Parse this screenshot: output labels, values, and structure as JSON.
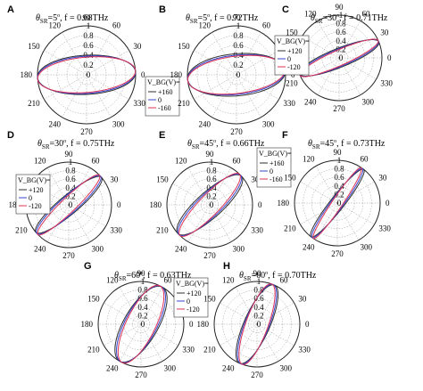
{
  "theme": {
    "colors": {
      "plus": "#2e2e2e",
      "zero": "#3344cc",
      "minus": "#dd3355",
      "grid": "#999999",
      "outer": "#222222"
    }
  },
  "chart_data": [
    {
      "panel": "A",
      "type": "polar",
      "theta_sr": "5",
      "freq": "0.68THz",
      "title_rest": ", f = 0.68THz",
      "angle_labels": [
        "90",
        "60",
        "30",
        "0",
        "330",
        "300",
        "270",
        "240",
        "210",
        "180",
        "150",
        "120"
      ],
      "r_ticks": [
        "0",
        "0.2",
        "0.4",
        "0.6",
        "0.8",
        "1"
      ],
      "rlim": [
        0,
        1
      ],
      "legend": {
        "title": "V_BG(V)=",
        "entries": [
          "+160",
          "0",
          "-160"
        ]
      },
      "series": [
        {
          "name": "+160",
          "ellipse": {
            "major_deg": 3,
            "minor": 0.4
          }
        },
        {
          "name": "0",
          "ellipse": {
            "major_deg": 4,
            "minor": 0.38
          }
        },
        {
          "name": "-160",
          "ellipse": {
            "major_deg": 5,
            "minor": 0.36
          }
        }
      ]
    },
    {
      "panel": "B",
      "type": "polar",
      "theta_sr": "5",
      "freq": "0.72THz",
      "title_rest": ", f = 0.72THz",
      "angle_labels": [
        "90",
        "60",
        "30",
        "0",
        "330",
        "300",
        "270",
        "240",
        "210",
        "180",
        "150",
        "120"
      ],
      "r_ticks": [
        "0",
        "0.2",
        "0.4",
        "0.6",
        "0.8",
        "1"
      ],
      "rlim": [
        0,
        1
      ],
      "legend": null,
      "series": [
        {
          "name": "+160",
          "ellipse": {
            "major_deg": 5,
            "minor": 0.43
          }
        },
        {
          "name": "0",
          "ellipse": {
            "major_deg": 6,
            "minor": 0.4
          }
        },
        {
          "name": "-160",
          "ellipse": {
            "major_deg": 7,
            "minor": 0.38
          }
        }
      ]
    },
    {
      "panel": "C",
      "type": "polar",
      "theta_sr": "30",
      "freq": "0.71THz",
      "title_rest": ", f = 0.71THz",
      "angle_labels": [
        "90",
        "60",
        "30",
        "0",
        "330",
        "300",
        "270",
        "240",
        "210",
        "180",
        "150",
        "120"
      ],
      "r_ticks": [
        "0",
        "0.2",
        "0.4",
        "0.6",
        "0.8",
        "1"
      ],
      "rlim": [
        0,
        1
      ],
      "legend": {
        "title": "V_BG(V)=",
        "entries": [
          "+120",
          "0",
          "-120"
        ]
      },
      "series": [
        {
          "name": "+120",
          "ellipse": {
            "major_deg": 22,
            "minor": 0.22
          }
        },
        {
          "name": "0",
          "ellipse": {
            "major_deg": 23,
            "minor": 0.2
          }
        },
        {
          "name": "-120",
          "ellipse": {
            "major_deg": 24,
            "minor": 0.18
          }
        }
      ]
    },
    {
      "panel": "D",
      "type": "polar",
      "theta_sr": "30",
      "freq": "0.75THz",
      "title_rest": ", f = 0.75THz",
      "angle_labels": [
        "90",
        "60",
        "30",
        "0",
        "330",
        "300",
        "270",
        "240",
        "210",
        "180",
        "150",
        "120"
      ],
      "r_ticks": [
        "0",
        "0.2",
        "0.4",
        "0.6",
        "0.8",
        "1"
      ],
      "rlim": [
        0,
        1
      ],
      "legend": {
        "title": "V_BG(V)=",
        "entries": [
          "+120",
          "0",
          "-120"
        ]
      },
      "series": [
        {
          "name": "+120",
          "ellipse": {
            "major_deg": 40,
            "minor": 0.22
          }
        },
        {
          "name": "0",
          "ellipse": {
            "major_deg": 42,
            "minor": 0.2
          }
        },
        {
          "name": "-120",
          "ellipse": {
            "major_deg": 44,
            "minor": 0.17
          }
        }
      ]
    },
    {
      "panel": "E",
      "type": "polar",
      "theta_sr": "45",
      "freq": "0.66THz",
      "title_rest": ", f = 0.66THz",
      "angle_labels": [
        "90",
        "60",
        "30",
        "0",
        "330",
        "300",
        "270",
        "240",
        "210",
        "180",
        "150",
        "120"
      ],
      "r_ticks": [
        "0",
        "0.2",
        "0.4",
        "0.6",
        "0.8",
        "1"
      ],
      "rlim": [
        0,
        1
      ],
      "legend": {
        "title": "V_BG(V)=",
        "entries": [
          "+160",
          "0",
          "-160"
        ]
      },
      "series": [
        {
          "name": "+160",
          "ellipse": {
            "major_deg": 42,
            "minor": 0.3
          }
        },
        {
          "name": "0",
          "ellipse": {
            "major_deg": 44,
            "minor": 0.27
          }
        },
        {
          "name": "-160",
          "ellipse": {
            "major_deg": 46,
            "minor": 0.24
          }
        }
      ]
    },
    {
      "panel": "F",
      "type": "polar",
      "theta_sr": "45",
      "freq": "0.73THz",
      "title_rest": ", f = 0.73THz",
      "angle_labels": [
        "90",
        "60",
        "30",
        "0",
        "330",
        "300",
        "270",
        "240",
        "210",
        "180",
        "150",
        "120"
      ],
      "r_ticks": [
        "0",
        "0.2",
        "0.4",
        "0.6",
        "0.8",
        "1"
      ],
      "rlim": [
        0,
        1
      ],
      "legend": null,
      "series": [
        {
          "name": "+160",
          "ellipse": {
            "major_deg": 52,
            "minor": 0.16
          }
        },
        {
          "name": "0",
          "ellipse": {
            "major_deg": 54,
            "minor": 0.14
          }
        },
        {
          "name": "-160",
          "ellipse": {
            "major_deg": 56,
            "minor": 0.12
          }
        }
      ]
    },
    {
      "panel": "G",
      "type": "polar",
      "theta_sr": "60",
      "freq": "0.63THz",
      "title_rest": ", f = 0.63THz",
      "angle_labels": [
        "90",
        "60",
        "30",
        "0",
        "330",
        "300",
        "270",
        "240",
        "210",
        "180",
        "150",
        "120"
      ],
      "r_ticks": [
        "0",
        "0.2",
        "0.4",
        "0.6",
        "0.8",
        "1"
      ],
      "rlim": [
        0,
        1
      ],
      "legend": {
        "title": "V_BG(V)=",
        "entries": [
          "+120",
          "0",
          "-120"
        ]
      },
      "series": [
        {
          "name": "+120",
          "ellipse": {
            "major_deg": 60,
            "minor": 0.4
          }
        },
        {
          "name": "0",
          "ellipse": {
            "major_deg": 62,
            "minor": 0.37
          }
        },
        {
          "name": "-120",
          "ellipse": {
            "major_deg": 64,
            "minor": 0.34
          }
        }
      ]
    },
    {
      "panel": "H",
      "type": "polar",
      "theta_sr": "60",
      "freq": "0.70THz",
      "title_rest": ", f = 0.70THz",
      "angle_labels": [
        "90",
        "60",
        "30",
        "0",
        "330",
        "300",
        "270",
        "240",
        "210",
        "180",
        "150",
        "120"
      ],
      "r_ticks": [
        "0",
        "0.2",
        "0.4",
        "0.6",
        "0.8",
        "1"
      ],
      "rlim": [
        0,
        1
      ],
      "legend": null,
      "series": [
        {
          "name": "+120",
          "ellipse": {
            "major_deg": 66,
            "minor": 0.3
          }
        },
        {
          "name": "0",
          "ellipse": {
            "major_deg": 68,
            "minor": 0.28
          }
        },
        {
          "name": "-120",
          "ellipse": {
            "major_deg": 70,
            "minor": 0.26
          }
        }
      ]
    }
  ]
}
